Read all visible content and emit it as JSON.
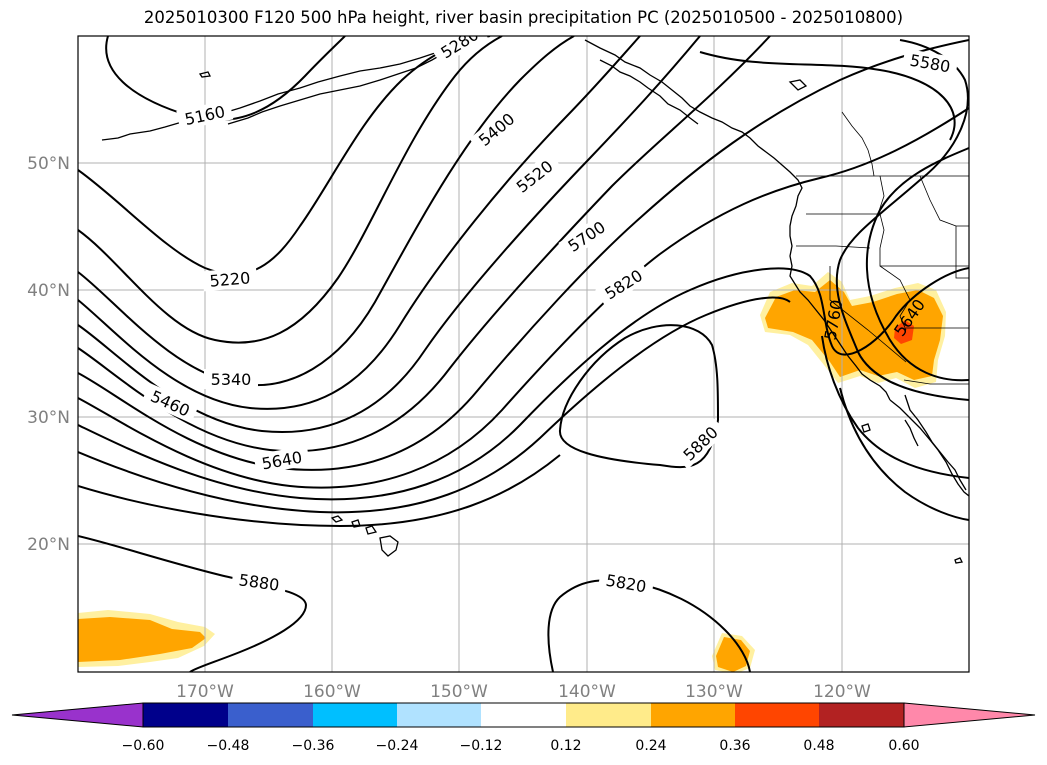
{
  "title": "2025010300 F120 500 hPa height, river basin precipitation PC (2025010500 - 2025010800)",
  "map": {
    "lat_labels": [
      "50°N",
      "40°N",
      "30°N",
      "20°N"
    ],
    "lon_labels": [
      "170°W",
      "160°W",
      "150°W",
      "140°W",
      "130°W",
      "120°W"
    ],
    "contour_labels": [
      "5160",
      "5280",
      "5400",
      "5520",
      "5700",
      "5820",
      "5220",
      "5340",
      "5460",
      "5640",
      "5880",
      "5880",
      "5820",
      "5580",
      "5760",
      "5640"
    ]
  },
  "colorbar": {
    "ticks": [
      "−0.60",
      "−0.48",
      "−0.36",
      "−0.24",
      "−0.12",
      "0.12",
      "0.24",
      "0.36",
      "0.48",
      "0.60"
    ],
    "colors": [
      "#9932cc",
      "#00008b",
      "#3a5fcd",
      "#00bfff",
      "#b0e2ff",
      "#ffffff",
      "#ffeb8a",
      "#ffa500",
      "#ff4500",
      "#b22222",
      "#ff88aa"
    ]
  }
}
